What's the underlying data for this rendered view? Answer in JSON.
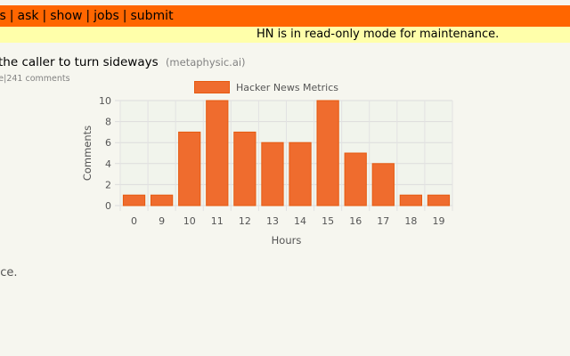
{
  "nav": {
    "items": [
      "ts",
      "ask",
      "show",
      "jobs",
      "submit"
    ],
    "separator": "|"
  },
  "notice": "HN is in read-only mode for maintenance.",
  "story": {
    "title": "the caller to turn sideways",
    "site": "(metaphysic.ai)",
    "subtext_prefix": "rite",
    "comments": "241 comments"
  },
  "footer_text": "nce.",
  "colors": {
    "header_bg": "#ff6600",
    "notice_bg": "#ffffaa",
    "page_bg": "#f6f6ef",
    "bar_fill": "#ef6c2e",
    "bar_border": "#e65a10"
  },
  "chart_data": {
    "type": "bar",
    "legend": "Hacker News Metrics",
    "legend_position": "top",
    "xlabel": "Hours",
    "ylabel": "Comments",
    "categories": [
      "0",
      "9",
      "10",
      "11",
      "12",
      "13",
      "14",
      "15",
      "16",
      "17",
      "18",
      "19"
    ],
    "values": [
      1,
      1,
      7,
      10,
      7,
      6,
      6,
      10,
      5,
      4,
      1,
      1
    ],
    "yticks": [
      "0",
      "2",
      "4",
      "6",
      "8",
      "10"
    ],
    "ylim": [
      0,
      10
    ],
    "grid": true
  }
}
